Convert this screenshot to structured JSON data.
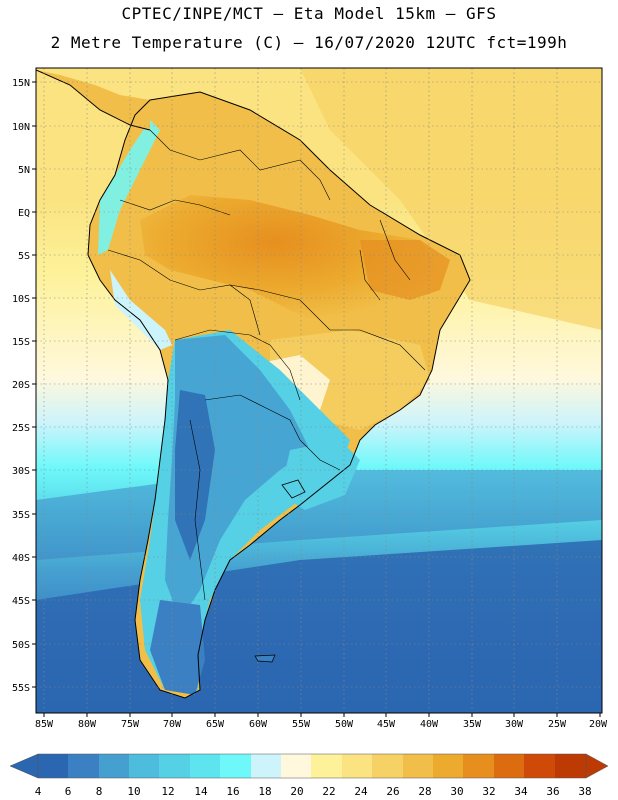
{
  "header": {
    "line1": "CPTEC/INPE/MCT –  Eta Model 15km – GFS",
    "line2": "2 Metre Temperature (C) – 16/07/2020 12UTC fct=199h"
  },
  "map": {
    "lat_labels": [
      "15N",
      "10N",
      "5N",
      "EQ",
      "5S",
      "10S",
      "15S",
      "20S",
      "25S",
      "30S",
      "35S",
      "40S",
      "45S",
      "50S",
      "55S"
    ],
    "lon_labels": [
      "85W",
      "80W",
      "75W",
      "70W",
      "65W",
      "60W",
      "55W",
      "50W",
      "45W",
      "40W",
      "35W",
      "30W",
      "25W",
      "20W"
    ]
  },
  "colorbar": {
    "labels": [
      "4",
      "6",
      "8",
      "10",
      "12",
      "14",
      "16",
      "18",
      "20",
      "22",
      "24",
      "26",
      "28",
      "30",
      "32",
      "34",
      "36",
      "38"
    ],
    "colors": [
      "#2b66b0",
      "#3a80c2",
      "#45a0d0",
      "#4ebcdc",
      "#55d0e4",
      "#5ee4ee",
      "#6ef8fa",
      "#cdf4fb",
      "#fff8dc",
      "#fdf29a",
      "#fae380",
      "#f6d165",
      "#f1bf49",
      "#ecaa2e",
      "#e68f1f",
      "#dc6c10",
      "#cf4a08",
      "#bd3a05"
    ],
    "left_arrow_color": "#2b66b0",
    "right_arrow_color": "#bd3a05"
  }
}
